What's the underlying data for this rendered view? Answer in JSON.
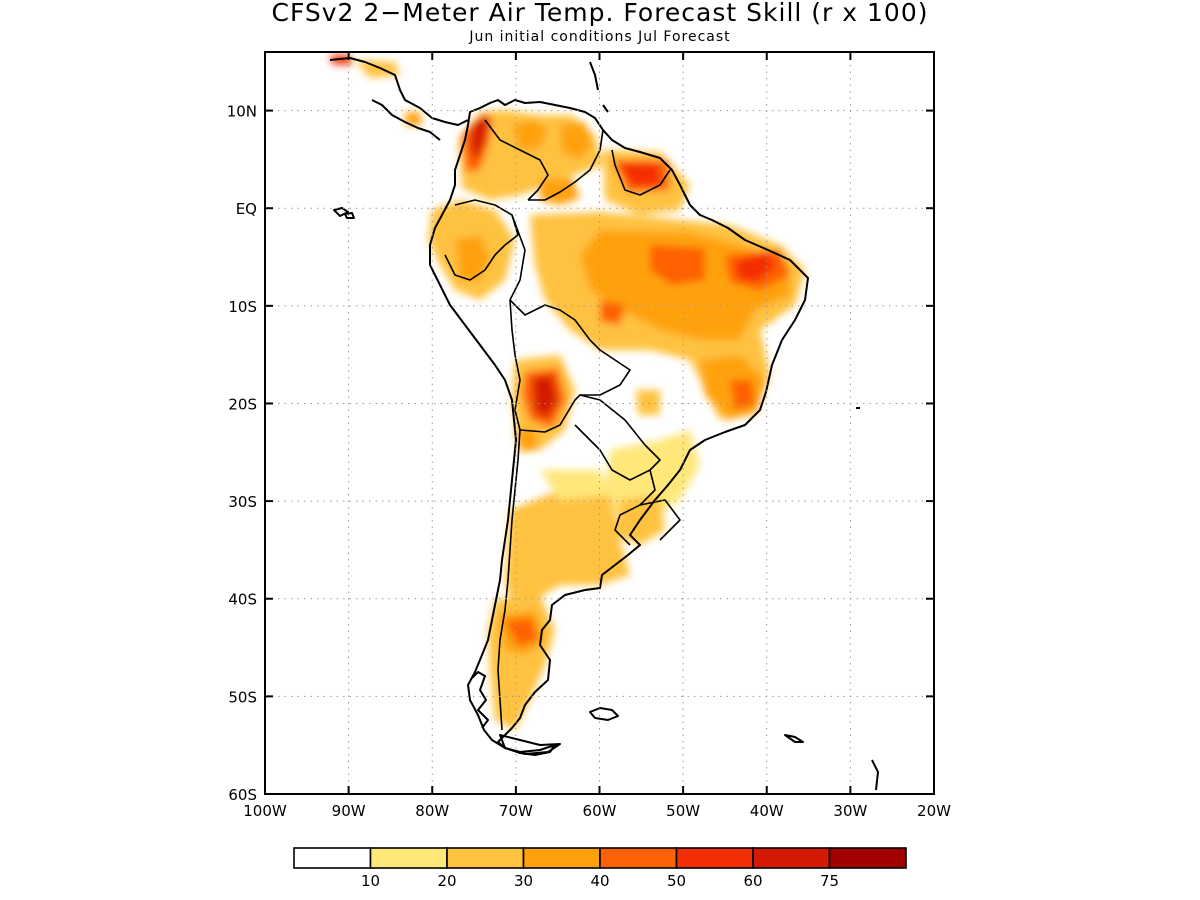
{
  "title": "CFSv2 2−Meter Air Temp. Forecast Skill (r x 100)",
  "subtitle": "Jun initial conditions  Jul Forecast",
  "lat_ticks": [
    {
      "lat": 10,
      "label": "10N"
    },
    {
      "lat": 0,
      "label": "EQ"
    },
    {
      "lat": -10,
      "label": "10S"
    },
    {
      "lat": -20,
      "label": "20S"
    },
    {
      "lat": -30,
      "label": "30S"
    },
    {
      "lat": -40,
      "label": "40S"
    },
    {
      "lat": -50,
      "label": "50S"
    },
    {
      "lat": -60,
      "label": "60S"
    }
  ],
  "lon_ticks": [
    {
      "lon": -100,
      "label": "100W"
    },
    {
      "lon": -90,
      "label": "90W"
    },
    {
      "lon": -80,
      "label": "80W"
    },
    {
      "lon": -70,
      "label": "70W"
    },
    {
      "lon": -60,
      "label": "60W"
    },
    {
      "lon": -50,
      "label": "50W"
    },
    {
      "lon": -40,
      "label": "40W"
    },
    {
      "lon": -30,
      "label": "30W"
    },
    {
      "lon": -20,
      "label": "20W"
    }
  ],
  "extent": {
    "lon_min": -100,
    "lon_max": -20,
    "lat_min": -60,
    "lat_max": 16
  },
  "colorbar": {
    "colors": [
      "#ffffff",
      "#ffe77a",
      "#ffc23f",
      "#ffa10c",
      "#ff6106",
      "#f52f05",
      "#d41a02",
      "#a10000"
    ],
    "labels": [
      "10",
      "20",
      "30",
      "40",
      "50",
      "60",
      "75"
    ]
  },
  "chart_data": {
    "type": "heatmap",
    "title": "CFSv2 2−Meter Air Temp. Forecast Skill (r x 100)",
    "subtitle": "Jun initial conditions  Jul Forecast",
    "xlim": [
      -100,
      -20
    ],
    "ylim": [
      -60,
      16
    ],
    "levels": [
      10,
      20,
      30,
      40,
      50,
      60,
      75
    ],
    "regions": [
      {
        "lon": -75,
        "lat": 7,
        "value": 60
      },
      {
        "lon": -66,
        "lat": -19,
        "value": 60
      },
      {
        "lon": -42,
        "lat": -6,
        "value": 55
      },
      {
        "lon": -55,
        "lat": 4,
        "value": 55
      },
      {
        "lon": -70,
        "lat": -42,
        "value": 45
      },
      {
        "lon": -60,
        "lat": -7,
        "value": 40
      },
      {
        "lon": -42,
        "lat": -19,
        "value": 40
      },
      {
        "lon": -77,
        "lat": -5,
        "value": 35
      },
      {
        "lon": -64,
        "lat": 7,
        "value": 35
      },
      {
        "lon": -63,
        "lat": -33,
        "value": 25
      },
      {
        "lon": -52,
        "lat": -27,
        "value": 20
      }
    ]
  }
}
